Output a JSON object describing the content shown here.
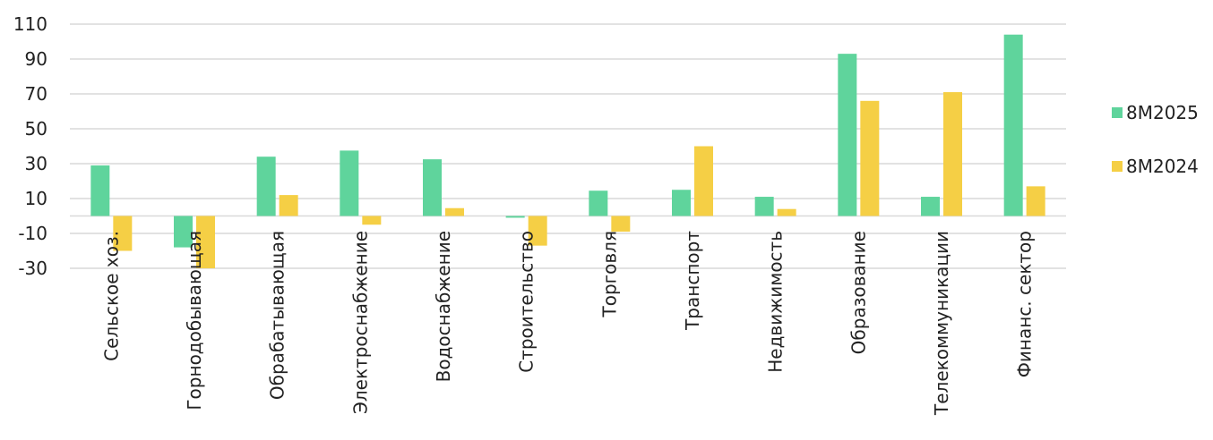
{
  "chart_data": {
    "type": "bar",
    "categories": [
      "Сельское хоз.",
      "Горнодобывающая",
      "Обрабатывающая",
      "Электроснабжение",
      "Водоснабжение",
      "Строительство",
      "Торговля",
      "Транспорт",
      "Недвижимость",
      "Образование",
      "Телекоммуникации",
      "Финанс. сектор"
    ],
    "series": [
      {
        "name": "8M2025",
        "color": "#5fd49c",
        "values": [
          29,
          -18,
          34,
          37.5,
          32.5,
          -1,
          14.5,
          15,
          11,
          93,
          11,
          104
        ]
      },
      {
        "name": "8M2024",
        "color": "#f5cf45",
        "values": [
          -20,
          -30,
          12,
          -5,
          4.5,
          -17,
          -9,
          40,
          4,
          66,
          71,
          17
        ]
      }
    ],
    "y_ticks": [
      "110",
      "90",
      "70",
      "50",
      "30",
      "10",
      "-10",
      "-30"
    ],
    "ylim": [
      -30,
      110
    ],
    "grid": true,
    "legend_position": "right",
    "title": "",
    "xlabel": "",
    "ylabel": ""
  }
}
